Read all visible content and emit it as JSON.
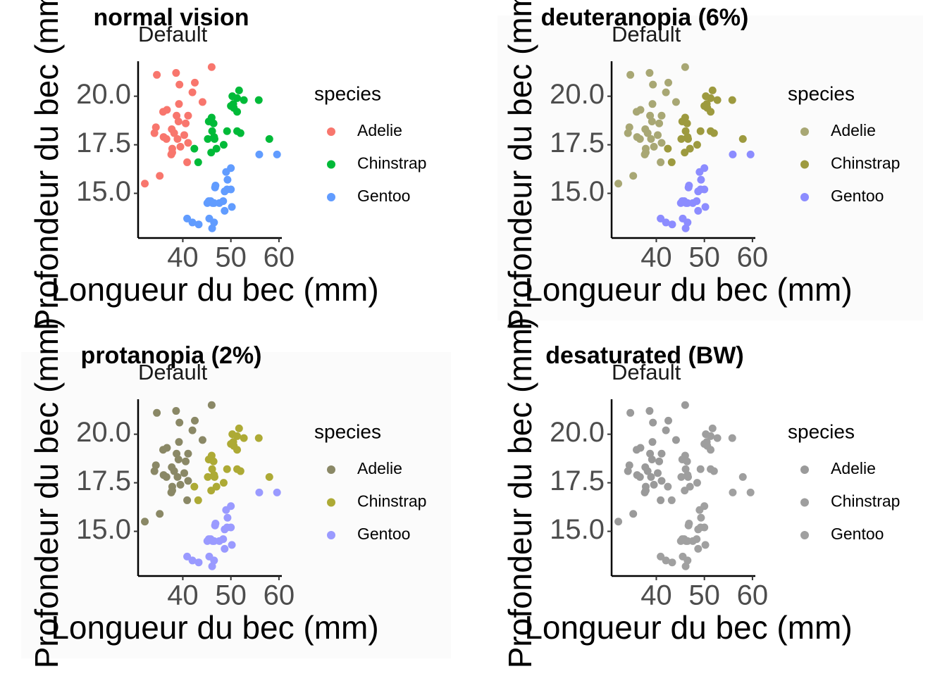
{
  "chart_data": [
    {
      "type": "scatter",
      "title": "normal vision",
      "subtitle": "Default",
      "xlabel": "Longueur du bec (mm)",
      "ylabel": "Profondeur du bec (mm)",
      "legend_title": "species",
      "xlim": [
        30.7,
        60.6
      ],
      "ylim": [
        12.7,
        21.8
      ],
      "xticks": [
        40,
        50,
        60
      ],
      "yticks": [
        {
          "value": 15,
          "label": "15.0"
        },
        {
          "value": 17.5,
          "label": "17.5"
        },
        {
          "value": 20,
          "label": "20.0"
        }
      ],
      "series": [
        {
          "name": "Adelie",
          "color": "#F8766D",
          "x": [
            39.1,
            39.5,
            40.3,
            36.7,
            39.3,
            38.9,
            39.2,
            34.1,
            42,
            37.8,
            37.8,
            41.1,
            38.6,
            34.6,
            36.6,
            38.7,
            42.5,
            34.4,
            46,
            37.7,
            35.9,
            38.2,
            32.1,
            35.2,
            40.9,
            41.1,
            36,
            44.1,
            37.6,
            40.6
          ],
          "y": [
            18.7,
            17.4,
            18,
            19.3,
            20.6,
            17.8,
            19.6,
            18.1,
            20.2,
            17.1,
            17.3,
            17.6,
            21.2,
            21.1,
            17.8,
            19,
            20.7,
            18.4,
            21.5,
            18.3,
            19.2,
            18.1,
            15.5,
            15.9,
            16.6,
            19,
            17.9,
            19.7,
            17,
            18.6
          ]
        },
        {
          "name": "Chinstrap",
          "color": "#00BA38",
          "x": [
            46.5,
            50,
            51.3,
            45.4,
            52.7,
            45.2,
            46.1,
            51.3,
            46,
            51.3,
            46.6,
            51.7,
            47,
            52,
            45.9,
            50.5,
            50.3,
            58,
            46.4,
            49.2,
            42.4,
            48.5,
            43.2,
            50.6,
            55.8
          ],
          "y": [
            17.9,
            19.5,
            19.2,
            18.7,
            19.8,
            17.8,
            18.2,
            18.2,
            18.9,
            19.9,
            17.8,
            20.3,
            17.3,
            18.1,
            17.1,
            19.6,
            20,
            17.8,
            18.6,
            18.2,
            17.3,
            17.5,
            16.6,
            19.4,
            19.8
          ]
        },
        {
          "name": "Gentoo",
          "color": "#619CFF",
          "x": [
            46.1,
            50,
            48.7,
            50,
            47.6,
            46.5,
            45.4,
            46.7,
            43.3,
            46.8,
            40.9,
            49,
            45.5,
            48.4,
            45.8,
            49.3,
            42,
            49.2,
            46.2,
            48.7,
            50.2,
            45.1,
            46.5,
            59.6,
            55.9
          ],
          "y": [
            13.2,
            16.3,
            14.1,
            15.2,
            14.5,
            13.5,
            14.6,
            15.3,
            13.4,
            15.4,
            13.7,
            16.1,
            13.7,
            14.6,
            14.6,
            15.7,
            13.5,
            15.2,
            14.5,
            15.1,
            14.3,
            14.5,
            14.5,
            17,
            17
          ]
        }
      ]
    },
    {
      "type": "scatter",
      "title": "deuteranopia (6%)",
      "subtitle": "Default",
      "xlabel": "Longueur du bec (mm)",
      "ylabel": "Profondeur du bec (mm)",
      "legend_title": "species",
      "xlim": [
        30.7,
        60.6
      ],
      "ylim": [
        12.7,
        21.8
      ],
      "xticks": [
        40,
        50,
        60
      ],
      "yticks": [
        {
          "value": 15,
          "label": "15.0"
        },
        {
          "value": 17.5,
          "label": "17.5"
        },
        {
          "value": 20,
          "label": "20.0"
        }
      ],
      "series": [
        {
          "name": "Adelie",
          "color": "#A8A774",
          "x": [
            39.1,
            39.5,
            40.3,
            36.7,
            39.3,
            38.9,
            39.2,
            34.1,
            42,
            37.8,
            37.8,
            41.1,
            38.6,
            34.6,
            36.6,
            38.7,
            42.5,
            34.4,
            46,
            37.7,
            35.9,
            38.2,
            32.1,
            35.2,
            40.9,
            41.1,
            36,
            44.1,
            37.6,
            40.6
          ],
          "y": [
            18.7,
            17.4,
            18,
            19.3,
            20.6,
            17.8,
            19.6,
            18.1,
            20.2,
            17.1,
            17.3,
            17.6,
            21.2,
            21.1,
            17.8,
            19,
            20.7,
            18.4,
            21.5,
            18.3,
            19.2,
            18.1,
            15.5,
            15.9,
            16.6,
            19,
            17.9,
            19.7,
            17,
            18.6
          ]
        },
        {
          "name": "Chinstrap",
          "color": "#9D9A3F",
          "x": [
            46.5,
            50,
            51.3,
            45.4,
            52.7,
            45.2,
            46.1,
            51.3,
            46,
            51.3,
            46.6,
            51.7,
            47,
            52,
            45.9,
            50.5,
            50.3,
            58,
            46.4,
            49.2,
            42.4,
            48.5,
            43.2,
            50.6,
            55.8
          ],
          "y": [
            17.9,
            19.5,
            19.2,
            18.7,
            19.8,
            17.8,
            18.2,
            18.2,
            18.9,
            19.9,
            17.8,
            20.3,
            17.3,
            18.1,
            17.1,
            19.6,
            20,
            17.8,
            18.6,
            18.2,
            17.3,
            17.5,
            16.6,
            19.4,
            19.8
          ]
        },
        {
          "name": "Gentoo",
          "color": "#8C8CFF",
          "x": [
            46.1,
            50,
            48.7,
            50,
            47.6,
            46.5,
            45.4,
            46.7,
            43.3,
            46.8,
            40.9,
            49,
            45.5,
            48.4,
            45.8,
            49.3,
            42,
            49.2,
            46.2,
            48.7,
            50.2,
            45.1,
            46.5,
            59.6,
            55.9
          ],
          "y": [
            13.2,
            16.3,
            14.1,
            15.2,
            14.5,
            13.5,
            14.6,
            15.3,
            13.4,
            15.4,
            13.7,
            16.1,
            13.7,
            14.6,
            14.6,
            15.7,
            13.5,
            15.2,
            14.5,
            15.1,
            14.3,
            14.5,
            14.5,
            17,
            17
          ]
        }
      ]
    },
    {
      "type": "scatter",
      "title": "protanopia (2%)",
      "subtitle": "Default",
      "xlabel": "Longueur du bec (mm)",
      "ylabel": "Profondeur du bec (mm)",
      "legend_title": "species",
      "xlim": [
        30.7,
        60.6
      ],
      "ylim": [
        12.7,
        21.8
      ],
      "xticks": [
        40,
        50,
        60
      ],
      "yticks": [
        {
          "value": 15,
          "label": "15.0"
        },
        {
          "value": 17.5,
          "label": "17.5"
        },
        {
          "value": 20,
          "label": "20.0"
        }
      ],
      "series": [
        {
          "name": "Adelie",
          "color": "#8A8866",
          "x": [
            39.1,
            39.5,
            40.3,
            36.7,
            39.3,
            38.9,
            39.2,
            34.1,
            42,
            37.8,
            37.8,
            41.1,
            38.6,
            34.6,
            36.6,
            38.7,
            42.5,
            34.4,
            46,
            37.7,
            35.9,
            38.2,
            32.1,
            35.2,
            40.9,
            41.1,
            36,
            44.1,
            37.6,
            40.6
          ],
          "y": [
            18.7,
            17.4,
            18,
            19.3,
            20.6,
            17.8,
            19.6,
            18.1,
            20.2,
            17.1,
            17.3,
            17.6,
            21.2,
            21.1,
            17.8,
            19,
            20.7,
            18.4,
            21.5,
            18.3,
            19.2,
            18.1,
            15.5,
            15.9,
            16.6,
            19,
            17.9,
            19.7,
            17,
            18.6
          ]
        },
        {
          "name": "Chinstrap",
          "color": "#ADAA35",
          "x": [
            46.5,
            50,
            51.3,
            45.4,
            52.7,
            45.2,
            46.1,
            51.3,
            46,
            51.3,
            46.6,
            51.7,
            47,
            52,
            45.9,
            50.5,
            50.3,
            58,
            46.4,
            49.2,
            42.4,
            48.5,
            43.2,
            50.6,
            55.8
          ],
          "y": [
            17.9,
            19.5,
            19.2,
            18.7,
            19.8,
            17.8,
            18.2,
            18.2,
            18.9,
            19.9,
            17.8,
            20.3,
            17.3,
            18.1,
            17.1,
            19.6,
            20,
            17.8,
            18.6,
            18.2,
            17.3,
            17.5,
            16.6,
            19.4,
            19.8
          ]
        },
        {
          "name": "Gentoo",
          "color": "#9A9AFF",
          "x": [
            46.1,
            50,
            48.7,
            50,
            47.6,
            46.5,
            45.4,
            46.7,
            43.3,
            46.8,
            40.9,
            49,
            45.5,
            48.4,
            45.8,
            49.3,
            42,
            49.2,
            46.2,
            48.7,
            50.2,
            45.1,
            46.5,
            59.6,
            55.9
          ],
          "y": [
            13.2,
            16.3,
            14.1,
            15.2,
            14.5,
            13.5,
            14.6,
            15.3,
            13.4,
            15.4,
            13.7,
            16.1,
            13.7,
            14.6,
            14.6,
            15.7,
            13.5,
            15.2,
            14.5,
            15.1,
            14.3,
            14.5,
            14.5,
            17,
            17
          ]
        }
      ]
    },
    {
      "type": "scatter",
      "title": "desaturated (BW)",
      "subtitle": "Default",
      "xlabel": "Longueur du bec (mm)",
      "ylabel": "Profondeur du bec (mm)",
      "legend_title": "species",
      "xlim": [
        30.7,
        60.6
      ],
      "ylim": [
        12.7,
        21.8
      ],
      "xticks": [
        40,
        50,
        60
      ],
      "yticks": [
        {
          "value": 15,
          "label": "15.0"
        },
        {
          "value": 17.5,
          "label": "17.5"
        },
        {
          "value": 20,
          "label": "20.0"
        }
      ],
      "series": [
        {
          "name": "Adelie",
          "color": "#9A9A9A",
          "x": [
            39.1,
            39.5,
            40.3,
            36.7,
            39.3,
            38.9,
            39.2,
            34.1,
            42,
            37.8,
            37.8,
            41.1,
            38.6,
            34.6,
            36.6,
            38.7,
            42.5,
            34.4,
            46,
            37.7,
            35.9,
            38.2,
            32.1,
            35.2,
            40.9,
            41.1,
            36,
            44.1,
            37.6,
            40.6
          ],
          "y": [
            18.7,
            17.4,
            18,
            19.3,
            20.6,
            17.8,
            19.6,
            18.1,
            20.2,
            17.1,
            17.3,
            17.6,
            21.2,
            21.1,
            17.8,
            19,
            20.7,
            18.4,
            21.5,
            18.3,
            19.2,
            18.1,
            15.5,
            15.9,
            16.6,
            19,
            17.9,
            19.7,
            17,
            18.6
          ]
        },
        {
          "name": "Chinstrap",
          "color": "#9E9E9E",
          "x": [
            46.5,
            50,
            51.3,
            45.4,
            52.7,
            45.2,
            46.1,
            51.3,
            46,
            51.3,
            46.6,
            51.7,
            47,
            52,
            45.9,
            50.5,
            50.3,
            58,
            46.4,
            49.2,
            42.4,
            48.5,
            43.2,
            50.6,
            55.8
          ],
          "y": [
            17.9,
            19.5,
            19.2,
            18.7,
            19.8,
            17.8,
            18.2,
            18.2,
            18.9,
            19.9,
            17.8,
            20.3,
            17.3,
            18.1,
            17.1,
            19.6,
            20,
            17.8,
            18.6,
            18.2,
            17.3,
            17.5,
            16.6,
            19.4,
            19.8
          ]
        },
        {
          "name": "Gentoo",
          "color": "#A0A0A0",
          "x": [
            46.1,
            50,
            48.7,
            50,
            47.6,
            46.5,
            45.4,
            46.7,
            43.3,
            46.8,
            40.9,
            49,
            45.5,
            48.4,
            45.8,
            49.3,
            42,
            49.2,
            46.2,
            48.7,
            50.2,
            45.1,
            46.5,
            59.6,
            55.9
          ],
          "y": [
            13.2,
            16.3,
            14.1,
            15.2,
            14.5,
            13.5,
            14.6,
            15.3,
            13.4,
            15.4,
            13.7,
            16.1,
            13.7,
            14.6,
            14.6,
            15.7,
            13.5,
            15.2,
            14.5,
            15.1,
            14.3,
            14.5,
            14.5,
            17,
            17
          ]
        }
      ]
    }
  ]
}
